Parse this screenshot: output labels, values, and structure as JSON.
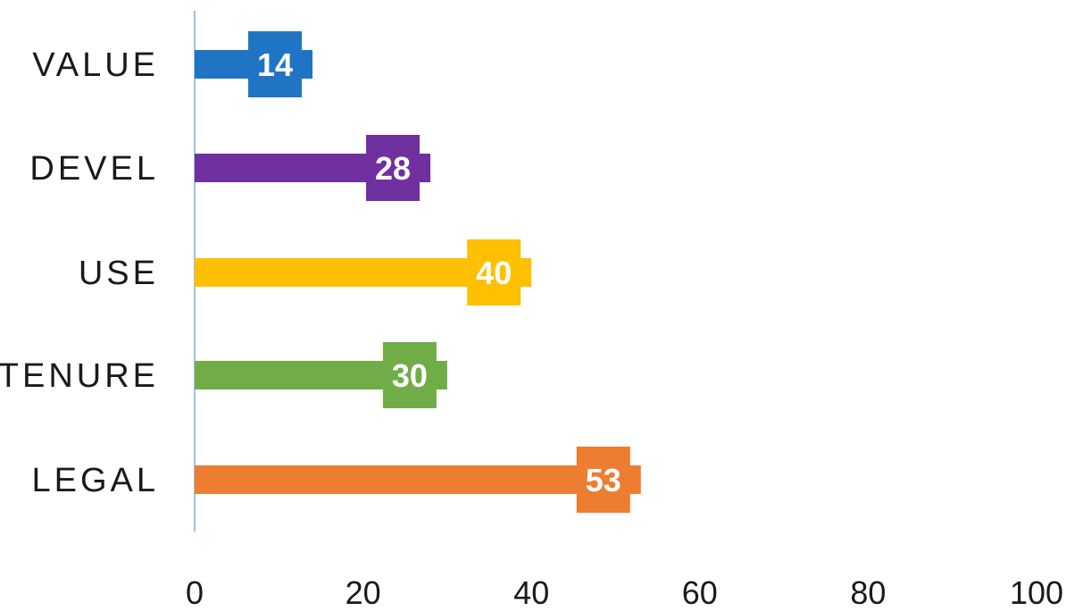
{
  "chart_data": {
    "type": "bar",
    "orientation": "horizontal",
    "categories": [
      "VALUE",
      "DEVEL",
      "USE",
      "TENURE",
      "LEGAL"
    ],
    "values": [
      14,
      28,
      40,
      30,
      53
    ],
    "data_labels": [
      "14",
      "28",
      "40",
      "30",
      "53"
    ],
    "colors": [
      "#1f74c4",
      "#7030a0",
      "#ffc000",
      "#70ad47",
      "#ed7d31"
    ],
    "xlim": [
      0,
      100
    ],
    "xticks": [
      0,
      20,
      40,
      60,
      80,
      100
    ],
    "xtick_labels": [
      "0",
      "20",
      "40",
      "60",
      "80",
      "100"
    ],
    "grid": false,
    "axis_color": "#9dc3e6"
  }
}
